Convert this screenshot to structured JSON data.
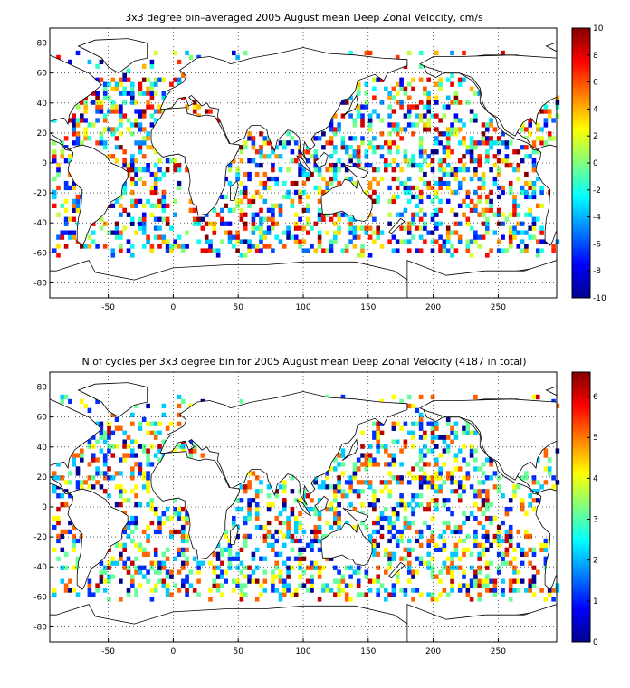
{
  "panels": [
    {
      "title": "3x3 degree bin–averaged 2005 August mean Deep Zonal Velocity, cm/s",
      "xticks": [
        -50,
        0,
        50,
        100,
        150,
        200,
        250
      ],
      "yticks": [
        -80,
        -60,
        -40,
        -20,
        0,
        20,
        40,
        60,
        80
      ],
      "colorbar": {
        "min": -10,
        "max": 10,
        "ticks": [
          -10,
          -8,
          -6,
          -4,
          -2,
          0,
          2,
          4,
          6,
          8,
          10
        ]
      }
    },
    {
      "title": "N of cycles per 3x3 degree bin for 2005 August mean Deep Zonal Velocity (4187 in total)",
      "xticks": [
        -50,
        0,
        50,
        100,
        150,
        200,
        250
      ],
      "yticks": [
        -80,
        -60,
        -40,
        -20,
        0,
        20,
        40,
        60,
        80
      ],
      "colorbar": {
        "min": 0,
        "max": 6.6,
        "ticks": [
          0,
          1,
          2,
          3,
          4,
          5,
          6
        ]
      }
    }
  ],
  "chart_data": [
    {
      "type": "heatmap",
      "title": "3x3 degree bin–averaged 2005 August mean Deep Zonal Velocity, cm/s",
      "xlabel": "",
      "ylabel": "",
      "xlim": [
        -95,
        295
      ],
      "ylim": [
        -90,
        90
      ],
      "grid": true,
      "colormap": "jet",
      "clim": [
        -10,
        10
      ],
      "bin_size_deg": 3
    },
    {
      "type": "heatmap",
      "title": "N of cycles per 3x3 degree bin for 2005 August mean Deep Zonal Velocity (4187 in total)",
      "xlabel": "",
      "ylabel": "",
      "xlim": [
        -95,
        295
      ],
      "ylim": [
        -90,
        90
      ],
      "grid": true,
      "colormap": "jet",
      "clim": [
        0,
        6.6
      ],
      "bin_size_deg": 3,
      "total": 4187
    }
  ]
}
